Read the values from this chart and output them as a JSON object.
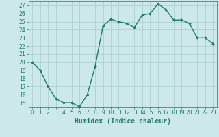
{
  "xlabel": "Humidex (Indice chaleur)",
  "x": [
    0,
    1,
    2,
    3,
    4,
    5,
    6,
    7,
    8,
    9,
    10,
    11,
    12,
    13,
    14,
    15,
    16,
    17,
    18,
    19,
    20,
    21,
    22,
    23
  ],
  "y": [
    20,
    19,
    17,
    15.5,
    15,
    15,
    14.5,
    16,
    19.5,
    24.5,
    25.3,
    25,
    24.8,
    24.3,
    25.8,
    26,
    27.2,
    26.5,
    25.2,
    25.2,
    24.8,
    23,
    23,
    22.3
  ],
  "line_color": "#1a7a6a",
  "marker": "D",
  "marker_size": 1.8,
  "bg_color": "#cce8e8",
  "grid_color": "#aacccc",
  "ylim": [
    14.5,
    27.5
  ],
  "yticks": [
    15,
    16,
    17,
    18,
    19,
    20,
    21,
    22,
    23,
    24,
    25,
    26,
    27
  ],
  "xlim": [
    -0.5,
    23.5
  ],
  "line_width": 1.0,
  "xlabel_fontsize": 7,
  "tick_fontsize": 5.8
}
